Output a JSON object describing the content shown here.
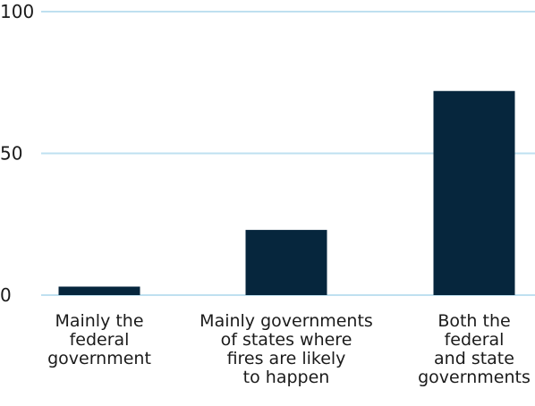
{
  "chart_data": {
    "type": "bar",
    "categories": [
      [
        "Mainly the",
        "federal",
        "government"
      ],
      [
        "Mainly governments",
        "of states where",
        "fires are likely",
        "to happen"
      ],
      [
        "Both the",
        "federal",
        "and state",
        "governments"
      ]
    ],
    "values": [
      3,
      23,
      72
    ],
    "ylim": [
      0,
      100
    ],
    "yticks": [
      0,
      50,
      100
    ],
    "grid": true,
    "colors": {
      "bar": "#06263d",
      "grid": "#bfe0f0",
      "text": "#1b1b1b"
    }
  }
}
